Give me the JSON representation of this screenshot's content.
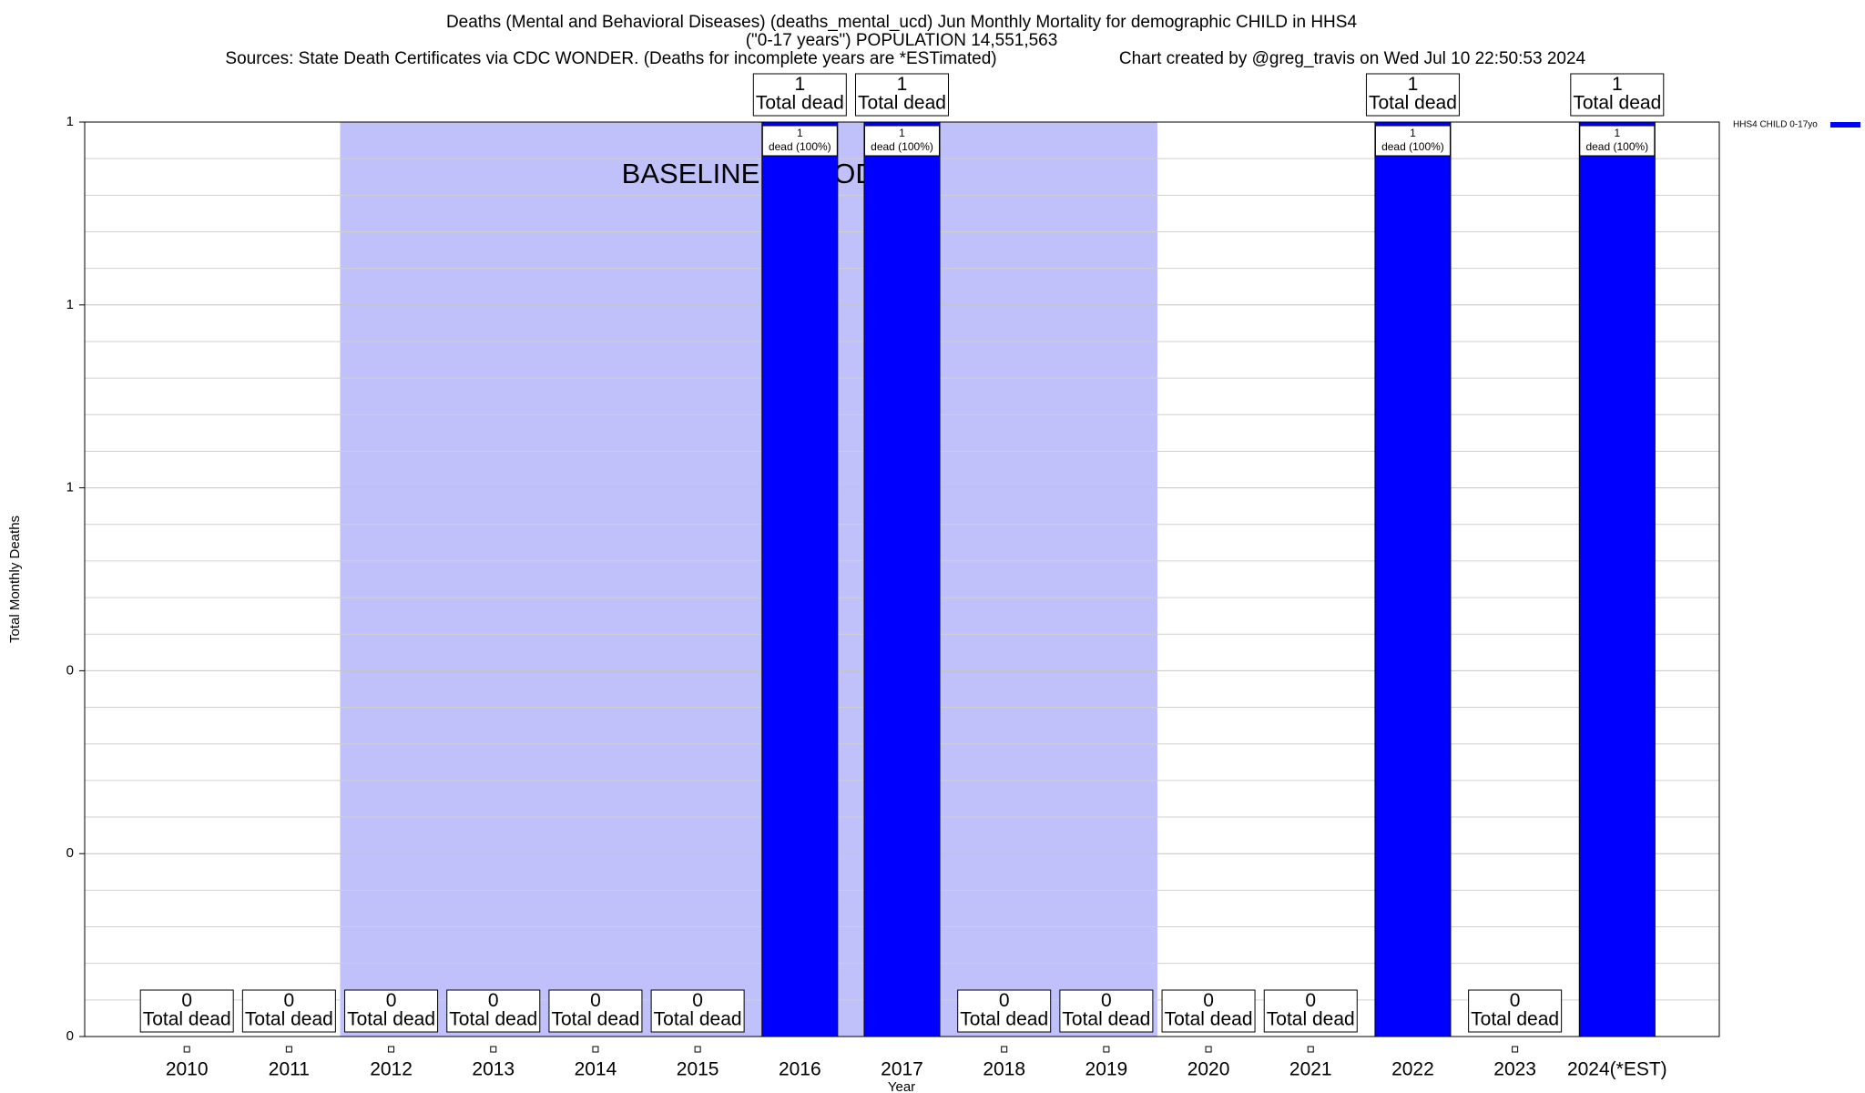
{
  "chart_data": {
    "type": "bar",
    "title": "Deaths (Mental and Behavioral Diseases) (deaths_mental_ucd) Jun Monthly Mortality for demographic CHILD in HHS4",
    "subtitle": "(\"0-17 years\") POPULATION 14,551,563",
    "source": "Sources: State Death Certificates via CDC WONDER. (Deaths for incomplete years are *ESTimated)",
    "credit": "Chart created by @greg_travis on Wed Jul 10 22:50:53 2024",
    "x_label": "Year",
    "y_label": "Total Monthly Deaths",
    "categories": [
      "2010",
      "2011",
      "2012",
      "2013",
      "2014",
      "2015",
      "2016",
      "2017",
      "2018",
      "2019",
      "2020",
      "2021",
      "2022",
      "2023",
      "2024(*EST)"
    ],
    "series": [
      {
        "name": "HHS4 CHILD 0-17yo",
        "color": "#0000ff",
        "values": [
          0,
          0,
          0,
          0,
          0,
          0,
          1,
          1,
          0,
          0,
          0,
          0,
          1,
          0,
          1
        ]
      }
    ],
    "total_label": "Total dead",
    "inner_labels": [
      null,
      null,
      null,
      null,
      null,
      null,
      "dead (100%)",
      "dead (100%)",
      null,
      null,
      null,
      null,
      "dead (100%)",
      null,
      "dead (100%)"
    ],
    "baseline": {
      "label": "BASELINE PERIOD",
      "start": "2012",
      "end": "2019",
      "color": "#c0c0fb"
    },
    "ylim": [
      0,
      1
    ],
    "yticks": [
      0,
      {
        "value": 0.2,
        "label": "0"
      },
      {
        "value": 0.4,
        "label": "0"
      },
      {
        "value": 0.6,
        "label": "1"
      },
      {
        "value": 0.8,
        "label": "1"
      },
      1
    ],
    "minor_yticks": [
      0.04,
      0.08,
      0.12,
      0.16,
      0.24,
      0.28,
      0.32,
      0.36,
      0.44,
      0.48,
      0.52,
      0.56,
      0.64,
      0.68,
      0.72,
      0.76,
      0.84,
      0.88,
      0.92,
      0.96
    ],
    "grid": true,
    "legend": "top-right"
  }
}
